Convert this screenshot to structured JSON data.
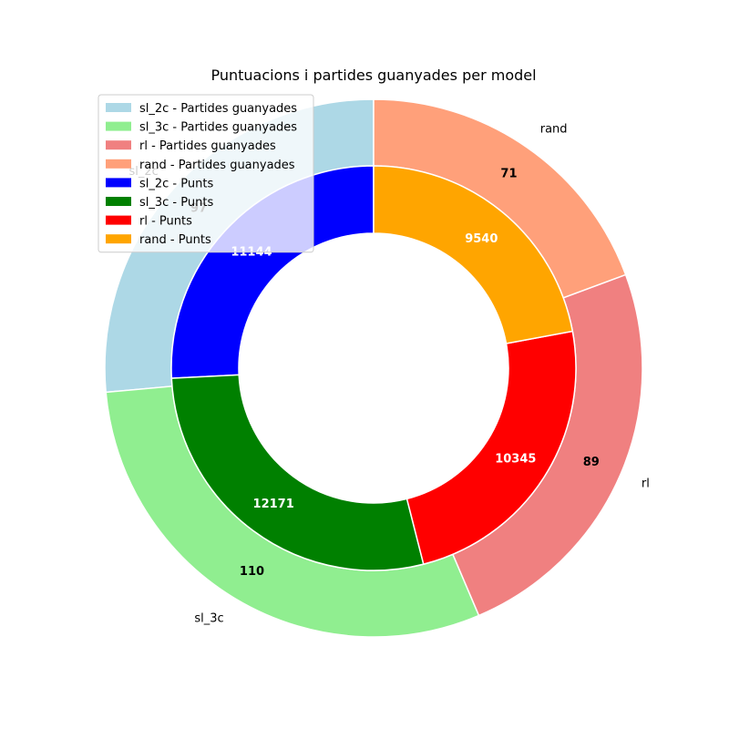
{
  "chart_data": {
    "type": "pie",
    "title": "Puntuacions i partides guanyades per model",
    "categories": [
      "sl_2c",
      "sl_3c",
      "rl",
      "rand"
    ],
    "series": [
      {
        "name": "Partides guanyades",
        "ring": "outer",
        "values": [
          97,
          110,
          89,
          71
        ],
        "colors": [
          "#add8e6",
          "#90ee90",
          "#f08080",
          "#ffa07a"
        ]
      },
      {
        "name": "Punts",
        "ring": "inner",
        "values": [
          11144,
          12171,
          10345,
          9540
        ],
        "colors": [
          "#0000ff",
          "#008000",
          "#ff0000",
          "#ffa500"
        ]
      }
    ],
    "legend": {
      "placement": "upper-left",
      "entries": [
        {
          "label": "sl_2c - Partides guanyades",
          "color": "#add8e6"
        },
        {
          "label": "sl_3c - Partides guanyades",
          "color": "#90ee90"
        },
        {
          "label": "rl - Partides guanyades",
          "color": "#f08080"
        },
        {
          "label": "rand - Partides guanyades",
          "color": "#ffa07a"
        },
        {
          "label": "sl_2c - Punts",
          "color": "#0000ff"
        },
        {
          "label": "sl_3c - Punts",
          "color": "#008000"
        },
        {
          "label": "rl - Punts",
          "color": "#ff0000"
        },
        {
          "label": "rand - Punts",
          "color": "#ffa500"
        }
      ]
    },
    "start_angle_deg": 90,
    "direction": "counterclockwise"
  }
}
